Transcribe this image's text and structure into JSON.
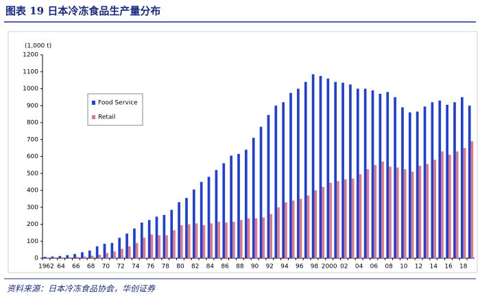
{
  "header": {
    "title": "图表 19   日本冷冻食品生产量分布"
  },
  "chart_data": {
    "type": "bar",
    "y_label": "(1,000 t)",
    "categories": [
      "1962",
      null,
      "64",
      null,
      "66",
      null,
      "68",
      null,
      "70",
      null,
      "72",
      null,
      "74",
      null,
      "76",
      null,
      "78",
      null,
      "80",
      null,
      "82",
      null,
      "84",
      null,
      "86",
      null,
      "88",
      null,
      "90",
      null,
      "92",
      null,
      "94",
      null,
      "96",
      null,
      "98",
      null,
      "2000",
      null,
      "02",
      null,
      "04",
      null,
      "06",
      null,
      "08",
      null,
      "10",
      null,
      "12",
      null,
      "14",
      null,
      "16",
      null,
      "18",
      null
    ],
    "series": [
      {
        "name": "Food Service",
        "color": "#1f3fd6",
        "values": [
          8,
          10,
          13,
          18,
          25,
          35,
          45,
          70,
          85,
          90,
          120,
          145,
          175,
          210,
          225,
          245,
          255,
          285,
          330,
          355,
          405,
          450,
          480,
          520,
          560,
          605,
          615,
          640,
          710,
          775,
          845,
          900,
          920,
          975,
          1000,
          1040,
          1085,
          1075,
          1060,
          1040,
          1035,
          1025,
          1000,
          1000,
          990,
          970,
          980,
          950,
          890,
          860,
          865,
          895,
          920,
          930,
          905,
          920,
          950,
          900
        ]
      },
      {
        "name": "Retail",
        "color": "#e07a86",
        "values": [
          5,
          5,
          5,
          6,
          8,
          10,
          15,
          20,
          30,
          40,
          55,
          70,
          90,
          120,
          140,
          135,
          135,
          165,
          195,
          200,
          205,
          195,
          205,
          215,
          210,
          215,
          225,
          235,
          235,
          240,
          260,
          300,
          330,
          340,
          350,
          370,
          400,
          420,
          445,
          455,
          465,
          470,
          495,
          525,
          550,
          570,
          540,
          535,
          525,
          510,
          545,
          555,
          580,
          630,
          610,
          630,
          650,
          690
        ]
      }
    ],
    "ylim": [
      0,
      1200
    ],
    "yticks": [
      0,
      100,
      200,
      300,
      400,
      500,
      600,
      700,
      800,
      900,
      1000,
      1100,
      1200
    ],
    "grid": false
  },
  "footer": {
    "source": "资料来源：日本冷冻食品协会，华创证券"
  }
}
